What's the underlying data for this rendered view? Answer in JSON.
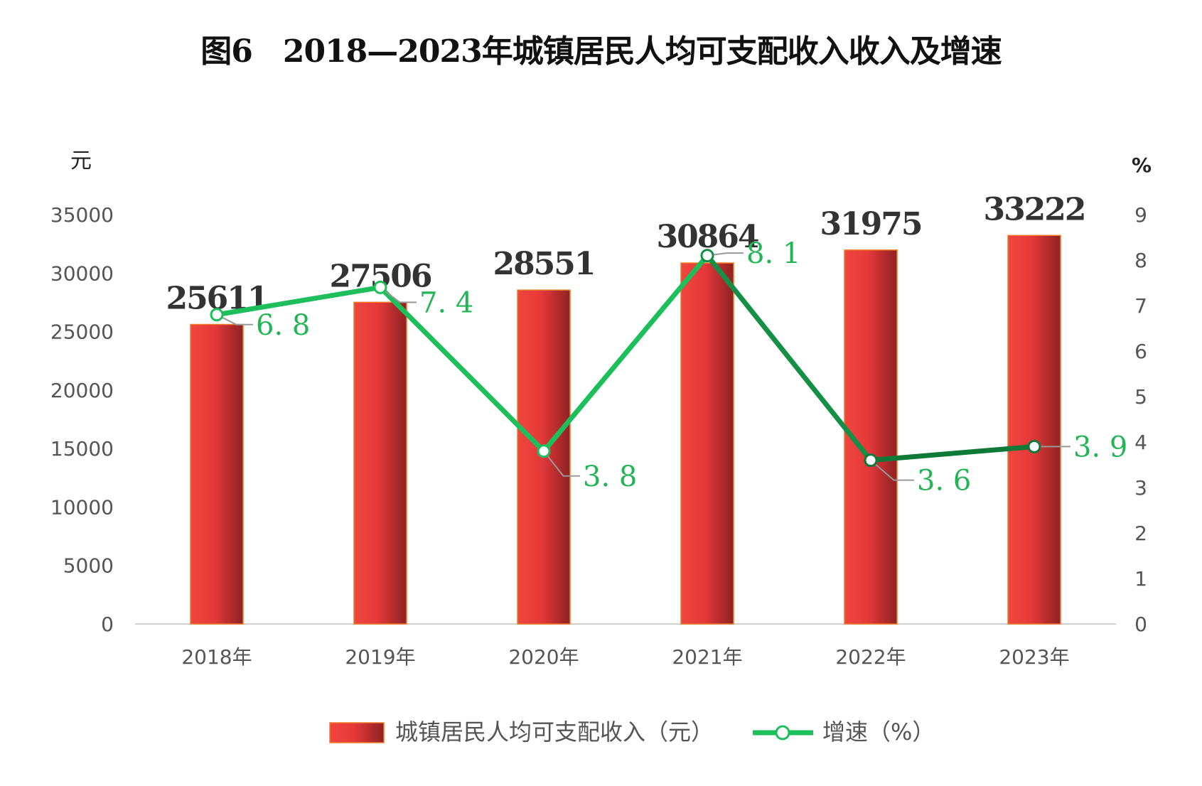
{
  "chart_data": {
    "type": "bar+line",
    "title": "图6　2018—2023年城镇居民人均可支配收入收入及增速",
    "categories": [
      "2018年",
      "2019年",
      "2020年",
      "2021年",
      "2022年",
      "2023年"
    ],
    "y_left_label": "元",
    "y_right_label": "%",
    "y_left_ticks": [
      "0",
      "5000",
      "10000",
      "15000",
      "20000",
      "25000",
      "30000",
      "35000"
    ],
    "y_right_ticks": [
      "0",
      "1",
      "2",
      "3",
      "4",
      "5",
      "6",
      "7",
      "8",
      "9"
    ],
    "ylim_left": [
      0,
      35000
    ],
    "ylim_right": [
      0,
      9
    ],
    "series": [
      {
        "name": "城镇居民人均可支配收入（元）",
        "type": "bar",
        "axis": "left",
        "values": [
          25611,
          27506,
          28551,
          30864,
          31975,
          33222
        ],
        "color": "#e8403a"
      },
      {
        "name": "增速（%）",
        "type": "line",
        "axis": "right",
        "values": [
          6.8,
          7.4,
          3.8,
          8.1,
          3.6,
          3.9
        ],
        "color": "#1dbf5a"
      }
    ],
    "grid": false,
    "legend": "bottom"
  }
}
